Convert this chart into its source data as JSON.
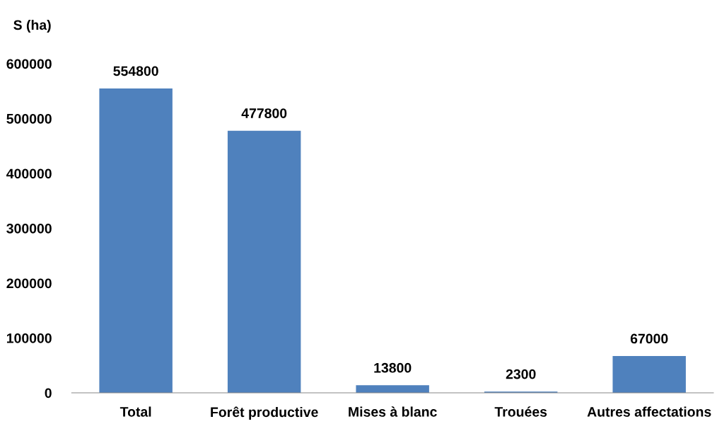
{
  "chart_data": {
    "type": "bar",
    "ylabel": "S (ha)",
    "categories": [
      "Total",
      "Forêt productive",
      "Mises à blanc",
      "Trouées",
      "Autres affectations"
    ],
    "values": [
      554800,
      477800,
      13800,
      2300,
      67000
    ],
    "color": "#4f81bd",
    "ylim": [
      0,
      600000
    ],
    "yticks": [
      0,
      100000,
      200000,
      300000,
      400000,
      500000,
      600000
    ],
    "data_labels": true,
    "grid": false,
    "legend": false
  }
}
